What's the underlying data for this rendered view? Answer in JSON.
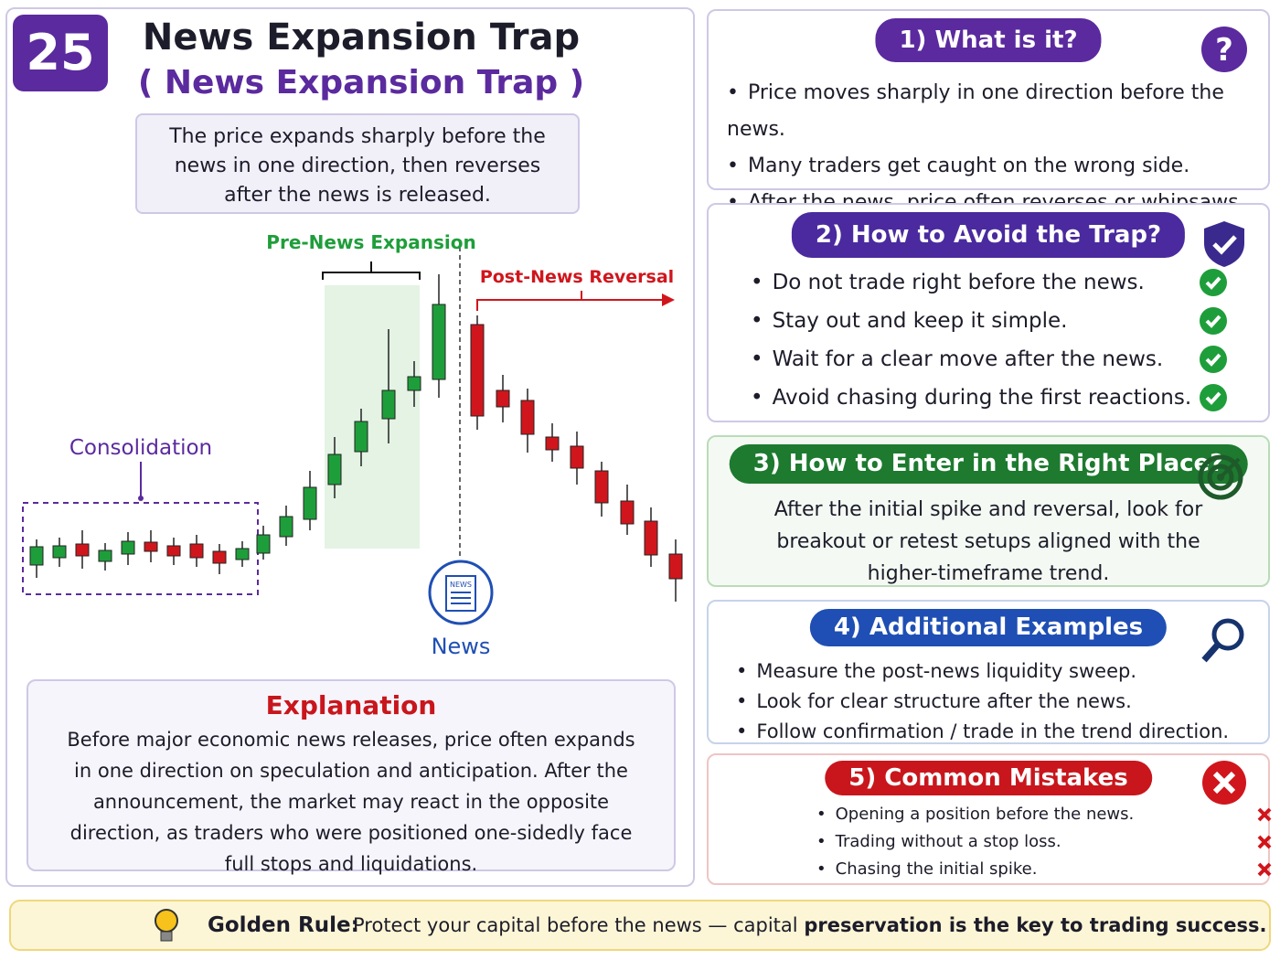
{
  "badge": "25",
  "header": {
    "title": "News Expansion Trap",
    "subtitle": "( News Expansion Trap )"
  },
  "summary": "The price expands sharply before the news in one direction, then reverses after the news is released.",
  "chart": {
    "consolidation": "Consolidation",
    "pre_news": "Pre-News Expansion",
    "post_news": "Post-News Reversal",
    "news_icon": "NEWS",
    "news": "News"
  },
  "explanation": {
    "title": "Explanation",
    "text": "Before major economic news releases, price often expands in one direction on speculation and anticipation. After the announcement, the market may react in the opposite direction, as traders who were positioned one-sidedly face full stops and liquidations."
  },
  "sections": [
    {
      "title": "1) What is it?",
      "items": [
        "Price moves sharply in one direction before the news.",
        "Many traders get caught on the wrong side.",
        "After the news, price often reverses or whipsaws."
      ]
    },
    {
      "title": "2) How to Avoid the Trap?",
      "items": [
        "Do not trade right before the news.",
        "Stay out and keep it simple.",
        "Wait for a clear move after the news.",
        "Avoid chasing during the first reactions."
      ]
    },
    {
      "title": "3) How to Enter in the Right Place?",
      "text": "After the initial spike and reversal, look for breakout or retest setups aligned with the higher-timeframe trend."
    },
    {
      "title": "4) Additional Examples",
      "items": [
        "Measure the post-news liquidity sweep.",
        "Look for clear structure after the news.",
        "Follow confirmation / trade in the trend direction."
      ]
    },
    {
      "title": "5) Common Mistakes",
      "items": [
        "Opening a position before the news.",
        "Trading without a stop loss.",
        "Chasing the initial spike."
      ]
    }
  ],
  "golden_rule": {
    "label": "Golden Rule:",
    "text": "Protect your capital before the news — capital",
    "emphasis": "preservation is the key to trading success."
  }
}
